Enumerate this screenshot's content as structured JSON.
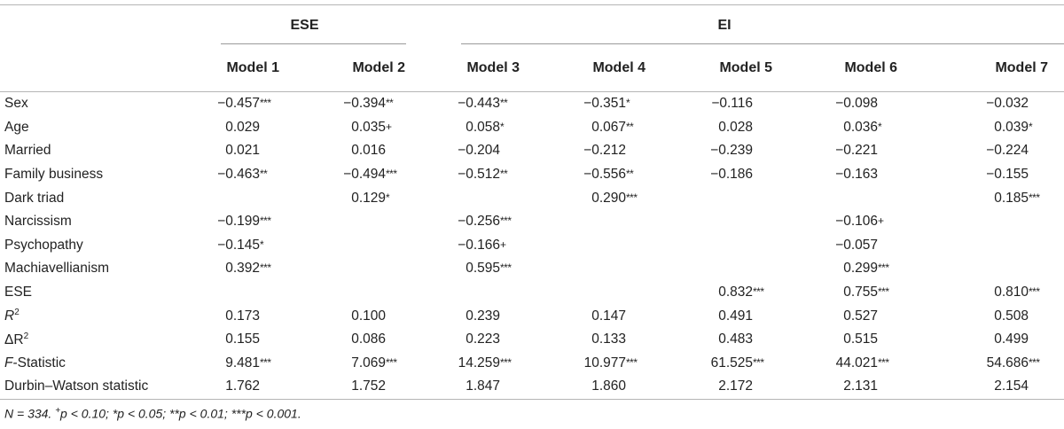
{
  "table": {
    "groups": [
      {
        "label": "ESE",
        "span": 2
      },
      {
        "label": "EI",
        "span": 5
      }
    ],
    "models": [
      "Model 1",
      "Model 2",
      "Model 3",
      "Model 4",
      "Model 5",
      "Model 6",
      "Model 7"
    ],
    "rows": [
      {
        "label": "Sex",
        "values": [
          "−0.457***",
          "−0.394**",
          "−0.443**",
          "−0.351*",
          "−0.116",
          "−0.098",
          "−0.032"
        ]
      },
      {
        "label": "Age",
        "values": [
          "0.029",
          "0.035+",
          "0.058*",
          "0.067**",
          "0.028",
          "0.036*",
          "0.039*"
        ]
      },
      {
        "label": "Married",
        "values": [
          "0.021",
          "0.016",
          "−0.204",
          "−0.212",
          "−0.239",
          "−0.221",
          "−0.224"
        ]
      },
      {
        "label": "Family business",
        "values": [
          "−0.463**",
          "−0.494***",
          "−0.512**",
          "−0.556**",
          "−0.186",
          "−0.163",
          "−0.155"
        ]
      },
      {
        "label": "Dark triad",
        "values": [
          "",
          "0.129*",
          "",
          "0.290***",
          "",
          "",
          "0.185***"
        ]
      },
      {
        "label": "Narcissism",
        "values": [
          "−0.199***",
          "",
          "−0.256***",
          "",
          "",
          "−0.106+",
          ""
        ]
      },
      {
        "label": "Psychopathy",
        "values": [
          "−0.145*",
          "",
          "−0.166+",
          "",
          "",
          "−0.057",
          ""
        ]
      },
      {
        "label": "Machiavellianism",
        "values": [
          "0.392***",
          "",
          "0.595***",
          "",
          "",
          "0.299***",
          ""
        ]
      },
      {
        "label": "ESE",
        "values": [
          "",
          "",
          "",
          "",
          "0.832***",
          "0.755***",
          "0.810***"
        ]
      },
      {
        "label": "R2",
        "values": [
          "0.173",
          "0.100",
          "0.239",
          "0.147",
          "0.491",
          "0.527",
          "0.508"
        ]
      },
      {
        "label": "ΔR2",
        "values": [
          "0.155",
          "0.086",
          "0.223",
          "0.133",
          "0.483",
          "0.515",
          "0.499"
        ]
      },
      {
        "label": "F-Statistic",
        "values": [
          "9.481***",
          "7.069***",
          "14.259***",
          "10.977***",
          "61.525***",
          "44.021***",
          "54.686***"
        ]
      },
      {
        "label": "Durbin–Watson statistic",
        "values": [
          "1.762",
          "1.752",
          "1.847",
          "1.860",
          "2.172",
          "2.131",
          "2.154"
        ]
      }
    ],
    "note": "N = 334. +p < 0.10; *p < 0.05; **p < 0.01; ***p < 0.001."
  }
}
